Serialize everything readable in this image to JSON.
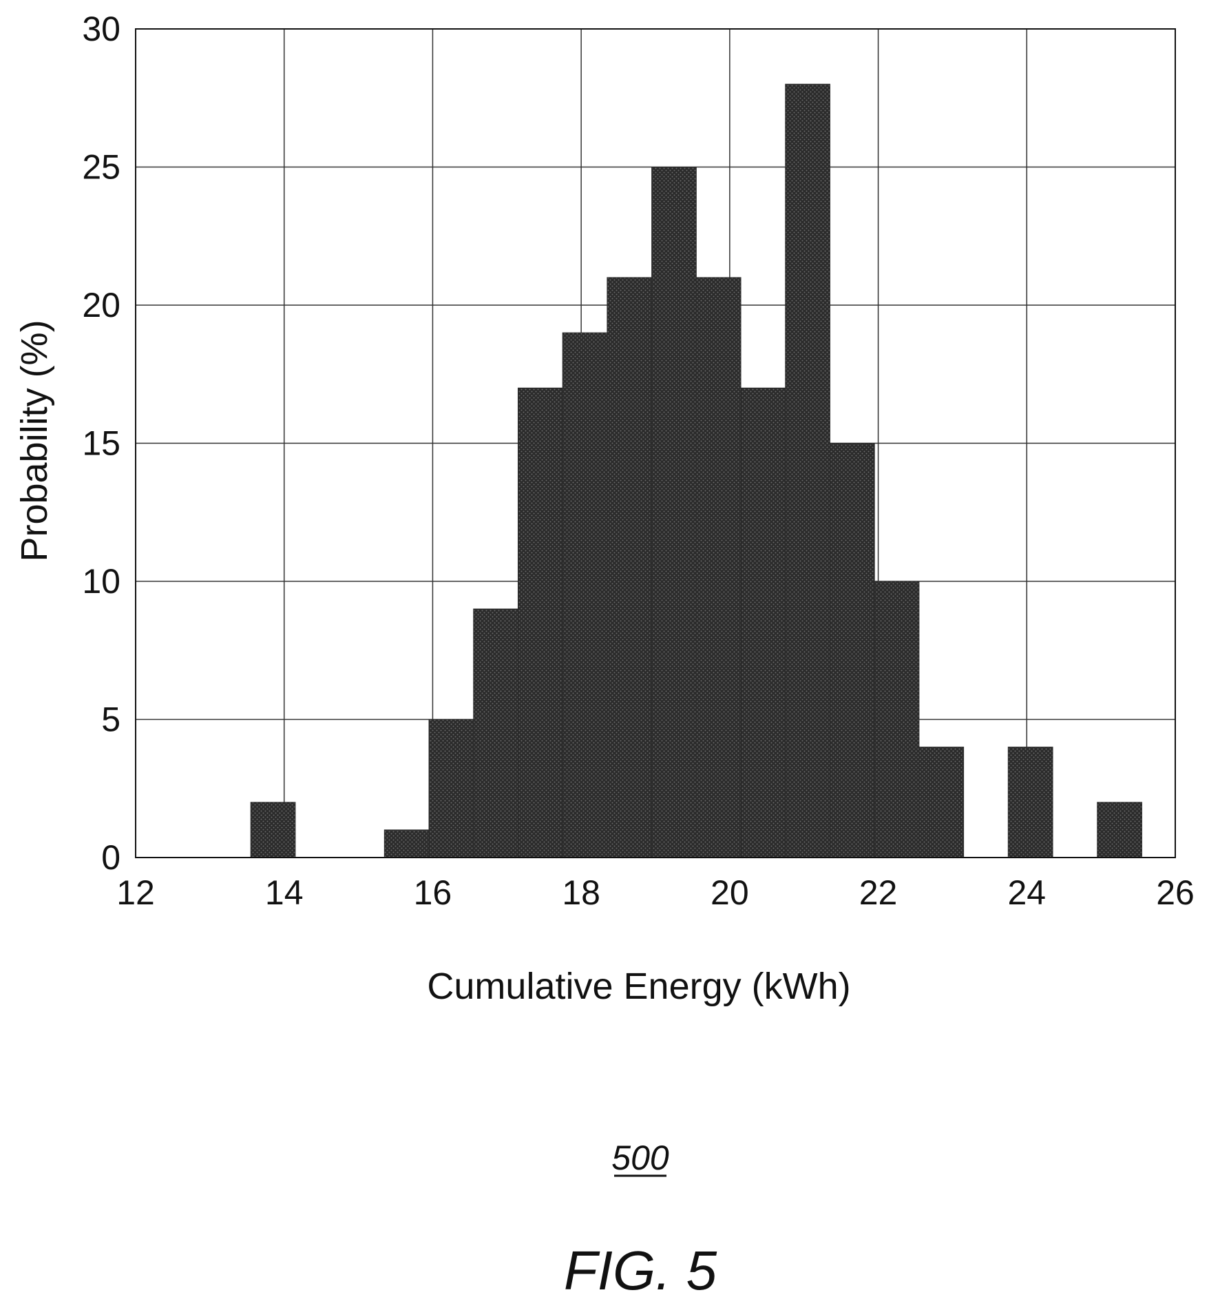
{
  "figure": {
    "reference_number": "500",
    "caption": "FIG. 5"
  },
  "colors": {
    "bar_fill": "#2b2b2b",
    "grid": "#333333",
    "axis": "#111111",
    "background": "#ffffff"
  },
  "chart_data": {
    "type": "bar",
    "title": "",
    "xlabel": "Cumulative Energy (kWh)",
    "ylabel": "Probability (%)",
    "xlim": [
      12,
      26
    ],
    "ylim": [
      0,
      30
    ],
    "x_ticks": [
      12,
      14,
      16,
      18,
      20,
      22,
      24,
      26
    ],
    "y_ticks": [
      0,
      5,
      10,
      15,
      20,
      25,
      30
    ],
    "grid": true,
    "bin_width": 0.6,
    "bins": [
      {
        "start": 13.55,
        "end": 14.15,
        "value": 2
      },
      {
        "start": 15.35,
        "end": 15.95,
        "value": 1
      },
      {
        "start": 15.95,
        "end": 16.55,
        "value": 5
      },
      {
        "start": 16.55,
        "end": 17.15,
        "value": 9
      },
      {
        "start": 17.15,
        "end": 17.75,
        "value": 17
      },
      {
        "start": 17.75,
        "end": 18.35,
        "value": 19
      },
      {
        "start": 18.35,
        "end": 18.95,
        "value": 21
      },
      {
        "start": 18.95,
        "end": 19.55,
        "value": 25
      },
      {
        "start": 19.55,
        "end": 20.15,
        "value": 21
      },
      {
        "start": 20.15,
        "end": 20.75,
        "value": 17
      },
      {
        "start": 20.75,
        "end": 21.35,
        "value": 28
      },
      {
        "start": 21.35,
        "end": 21.95,
        "value": 15
      },
      {
        "start": 21.95,
        "end": 22.55,
        "value": 10
      },
      {
        "start": 22.55,
        "end": 23.15,
        "value": 4
      },
      {
        "start": 23.75,
        "end": 24.35,
        "value": 4
      },
      {
        "start": 24.95,
        "end": 25.55,
        "value": 2
      }
    ]
  }
}
